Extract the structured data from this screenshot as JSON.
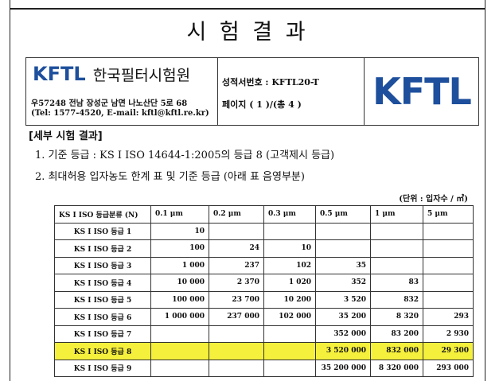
{
  "title": "시 험 결 과",
  "header": {
    "logo_text": "KFTL",
    "org_name": "한국필터시험원",
    "address": "우57248 전남 장성군 남면 나노산단 5로 68",
    "contact": "(Tel: 1577-4520, E-mail: kftl@kftl.re.kr)",
    "report_no": "성적서번호 : KFTL20-T",
    "page": "페이지 ( 1 )/(총 4 )",
    "big_logo": "KFTL"
  },
  "section": "[세부 시험 결과]",
  "items": [
    "1. 기준 등급 : KS I ISO 14644-1:2005의 등급 8 (고객제시 등급)",
    "2. 최대허용 입자농도 한계 표 및 기준 등급 (아래 표 음영부분)"
  ],
  "unit": "(단위 : 입자수 / ㎥)",
  "table": {
    "columns": [
      "KS I ISO 등급분류 (N)",
      "0.1 μm",
      "0.2 μm",
      "0.3 μm",
      "0.5 μm",
      "1 μm",
      "5 μm"
    ],
    "highlight_color": "#f5f03c",
    "rows": [
      {
        "label": "KS I ISO 등급 1",
        "cells": [
          "10",
          null,
          null,
          null,
          null,
          null
        ]
      },
      {
        "label": "KS I ISO 등급 2",
        "cells": [
          "100",
          "24",
          "10",
          null,
          null,
          null
        ]
      },
      {
        "label": "KS I ISO 등급 3",
        "cells": [
          "1 000",
          "237",
          "102",
          "35",
          null,
          null
        ]
      },
      {
        "label": "KS I ISO 등급 4",
        "cells": [
          "10 000",
          "2 370",
          "1 020",
          "352",
          "83",
          null
        ]
      },
      {
        "label": "KS I ISO 등급 5",
        "cells": [
          "100 000",
          "23 700",
          "10 200",
          "3 520",
          "832",
          null
        ]
      },
      {
        "label": "KS I ISO 등급 6",
        "cells": [
          "1 000 000",
          "237 000",
          "102 000",
          "35 200",
          "8 320",
          "293"
        ]
      },
      {
        "label": "KS I ISO 등급 7",
        "cells": [
          null,
          null,
          null,
          "352 000",
          "83 200",
          "2 930"
        ]
      },
      {
        "label": "KS I ISO 등급 8",
        "cells": [
          null,
          null,
          null,
          "3 520 000",
          "832 000",
          "29 300"
        ],
        "highlight": true
      },
      {
        "label": "KS I ISO 등급 9",
        "cells": [
          null,
          null,
          null,
          "35 200 000",
          "8 320 000",
          "293 000"
        ]
      }
    ]
  }
}
